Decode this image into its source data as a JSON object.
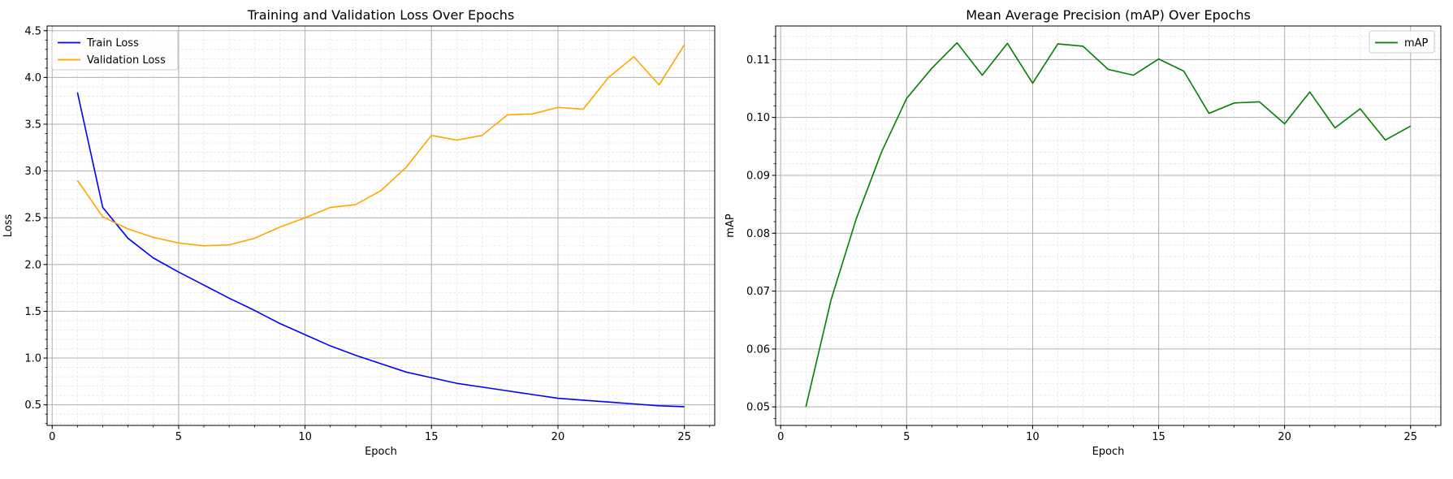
{
  "chart_data": [
    {
      "type": "line",
      "title": "Training and Validation Loss Over Epochs",
      "xlabel": "Epoch",
      "ylabel": "Loss",
      "xlim": [
        -0.2,
        26.2
      ],
      "ylim": [
        0.28,
        4.55
      ],
      "xticks": [
        0,
        5,
        10,
        15,
        20,
        25
      ],
      "yticks": [
        0.5,
        1.0,
        1.5,
        2.0,
        2.5,
        3.0,
        3.5,
        4.0,
        4.5
      ],
      "ytick_decimals": 1,
      "grid": true,
      "minor_grid": true,
      "legend": "top-left",
      "x": [
        1,
        2,
        3,
        4,
        5,
        6,
        7,
        8,
        9,
        10,
        11,
        12,
        13,
        14,
        15,
        16,
        17,
        18,
        19,
        20,
        21,
        22,
        23,
        24,
        25
      ],
      "series": [
        {
          "name": "Train Loss",
          "color": "#0000ff",
          "values": [
            3.84,
            2.61,
            2.28,
            2.07,
            1.92,
            1.78,
            1.64,
            1.51,
            1.37,
            1.25,
            1.13,
            1.03,
            0.94,
            0.85,
            0.79,
            0.73,
            0.69,
            0.65,
            0.61,
            0.57,
            0.55,
            0.53,
            0.51,
            0.49,
            0.48
          ]
        },
        {
          "name": "Validation Loss",
          "color": "#ffa500",
          "values": [
            2.9,
            2.51,
            2.38,
            2.29,
            2.23,
            2.2,
            2.21,
            2.28,
            2.4,
            2.5,
            2.61,
            2.64,
            2.79,
            3.04,
            3.38,
            3.33,
            3.38,
            3.6,
            3.61,
            3.68,
            3.66,
            4.0,
            4.22,
            3.92,
            4.35
          ]
        }
      ]
    },
    {
      "type": "line",
      "title": "Mean Average Precision (mAP) Over Epochs",
      "xlabel": "Epoch",
      "ylabel": "mAP",
      "xlim": [
        -0.2,
        26.2
      ],
      "ylim": [
        0.0468,
        0.1158
      ],
      "xticks": [
        0,
        5,
        10,
        15,
        20,
        25
      ],
      "yticks": [
        0.05,
        0.06,
        0.07,
        0.08,
        0.09,
        0.1,
        0.11
      ],
      "ytick_decimals": 2,
      "grid": true,
      "minor_grid": true,
      "legend": "top-right",
      "x": [
        1,
        2,
        3,
        4,
        5,
        6,
        7,
        8,
        9,
        10,
        11,
        12,
        13,
        14,
        15,
        16,
        17,
        18,
        19,
        20,
        21,
        22,
        23,
        24,
        25
      ],
      "series": [
        {
          "name": "mAP",
          "color": "#008000",
          "values": [
            0.05,
            0.0685,
            0.0825,
            0.094,
            0.1033,
            0.1085,
            0.1129,
            0.1073,
            0.1128,
            0.1059,
            0.1127,
            0.1123,
            0.1083,
            0.1073,
            0.1101,
            0.108,
            0.1007,
            0.1025,
            0.1027,
            0.0989,
            0.1044,
            0.0982,
            0.1015,
            0.0961,
            0.0985
          ]
        }
      ]
    }
  ]
}
